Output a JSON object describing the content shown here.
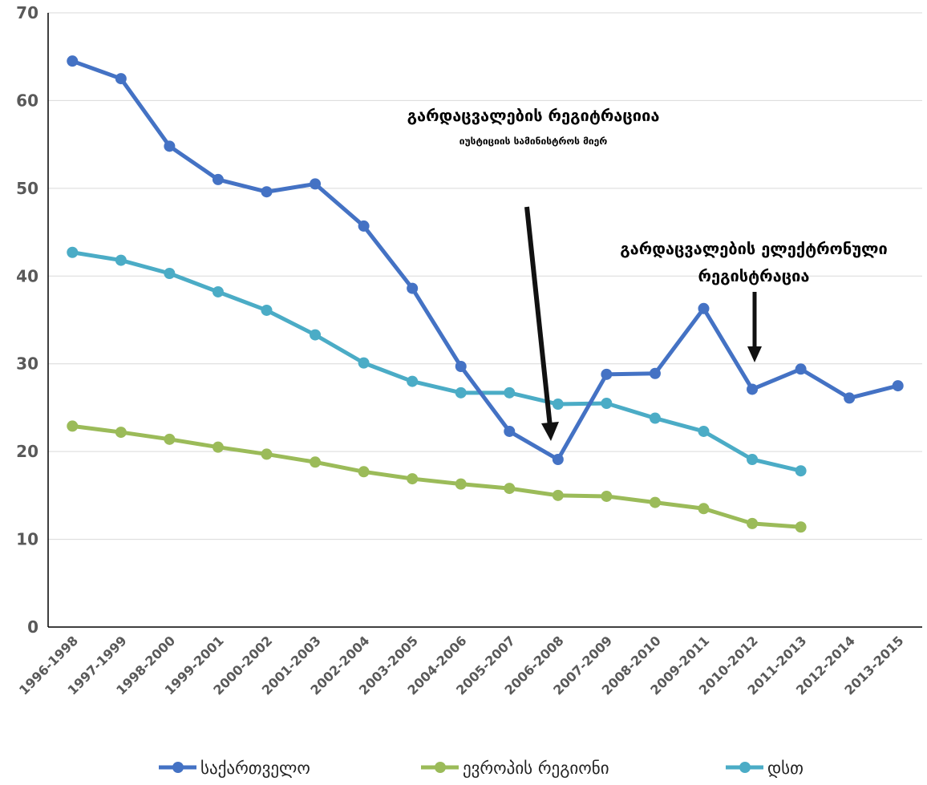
{
  "chart_data": {
    "type": "line",
    "categories": [
      "1996-1998",
      "1997-1999",
      "1998-2000",
      "1999-2001",
      "2000-2002",
      "2001-2003",
      "2002-2004",
      "2003-2005",
      "2004-2006",
      "2005-2007",
      "2006-2008",
      "2007-2009",
      "2008-2010",
      "2009-2011",
      "2010-2012",
      "2011-2013",
      "2012-2014",
      "2013-2015"
    ],
    "series": [
      {
        "name": "საქართველო",
        "color": "#4472C4",
        "values": [
          64.5,
          62.5,
          54.8,
          51.0,
          49.6,
          50.5,
          45.7,
          38.6,
          29.7,
          22.3,
          19.1,
          28.8,
          28.9,
          36.3,
          27.1,
          29.4,
          26.1,
          27.5
        ]
      },
      {
        "name": "ევროპის რეგიონი",
        "color": "#9BBB59",
        "values": [
          22.9,
          22.2,
          21.4,
          20.5,
          19.7,
          18.8,
          17.7,
          16.9,
          16.3,
          15.8,
          15.0,
          14.9,
          14.2,
          13.5,
          11.8,
          11.4,
          null,
          null
        ]
      },
      {
        "name": "დსთ",
        "color": "#4BACC6",
        "values": [
          42.7,
          41.8,
          40.3,
          38.2,
          36.1,
          33.3,
          30.1,
          28.0,
          26.7,
          26.7,
          25.4,
          25.5,
          23.8,
          22.3,
          19.1,
          17.8,
          null,
          null
        ]
      }
    ],
    "y_ticks": [
      "0",
      "10",
      "20",
      "30",
      "40",
      "50",
      "60",
      "70"
    ],
    "ylim": [
      0,
      70
    ],
    "grid": true,
    "legend_position": "bottom",
    "annotations": [
      {
        "title": "გარდაცვალების რეგიტრაციია",
        "subtitle": "იუსტიციის სამინისტროს მიერ",
        "target": "2006-2008"
      },
      {
        "title_line1": "გარდაცვალების ელექტრონული",
        "title_line2": "რეგისტრაცია",
        "target": "2010-2012"
      }
    ]
  }
}
